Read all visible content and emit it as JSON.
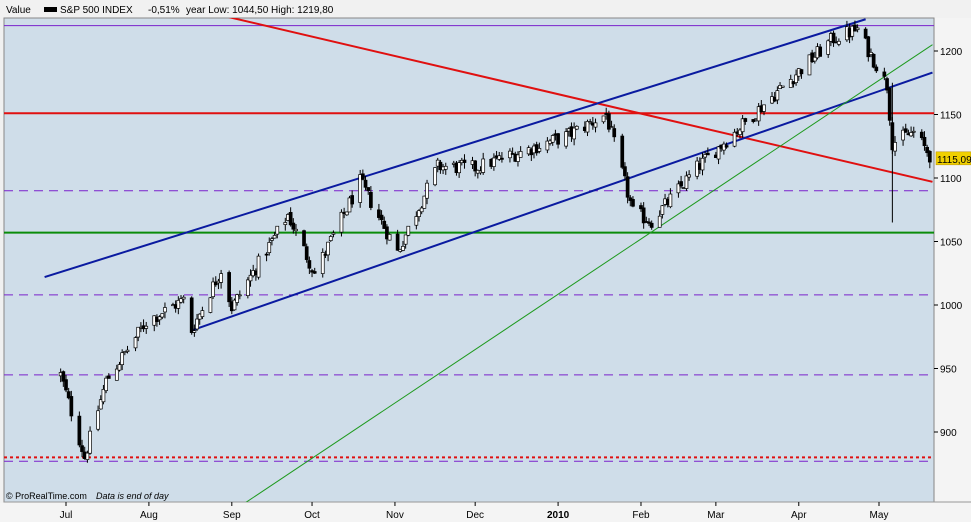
{
  "header": {
    "value_label": "Value",
    "instrument": "S&P 500 INDEX",
    "change": "-0,51%",
    "stats": "year Low: 1044,50 High: 1219,80"
  },
  "credit": {
    "source": "© ProRealTime.com",
    "note": "Data is end of day"
  },
  "colors": {
    "plot_background": "#cfdde9",
    "candle": "#000000",
    "channel": "#0a1aa0",
    "downtrend": "#e01010",
    "support_green": "#0a8c0a",
    "long_trendline": "#1f9a1f",
    "purple_dashed": "#7a22cc",
    "red_dotted": "#e01010",
    "price_tag": "#f0d000"
  },
  "chart_data": {
    "type": "candlestick",
    "instrument": "S&P 500 INDEX",
    "period": "daily",
    "x_tick_labels": [
      "Jul",
      "Aug",
      "Sep",
      "Oct",
      "Nov",
      "Dec",
      "2010",
      "Feb",
      "Mar",
      "Apr",
      "May"
    ],
    "y_tick_labels": [
      "900",
      "950",
      "1000",
      "1050",
      "1100",
      "1150",
      "1200"
    ],
    "ylim": [
      846,
      1230
    ],
    "last_price": "1115,09",
    "year_low": 1044.5,
    "year_high": 1219.8,
    "close_path": [
      {
        "date": "2009-06-29",
        "close": 945
      },
      {
        "date": "2009-07-08",
        "close": 880
      },
      {
        "date": "2009-07-16",
        "close": 940
      },
      {
        "date": "2009-07-31",
        "close": 987
      },
      {
        "date": "2009-08-14",
        "close": 1004
      },
      {
        "date": "2009-08-17",
        "close": 980
      },
      {
        "date": "2009-08-28",
        "close": 1028
      },
      {
        "date": "2009-09-01",
        "close": 998
      },
      {
        "date": "2009-09-22",
        "close": 1071
      },
      {
        "date": "2009-10-02",
        "close": 1025
      },
      {
        "date": "2009-10-19",
        "close": 1097
      },
      {
        "date": "2009-11-02",
        "close": 1042
      },
      {
        "date": "2009-11-17",
        "close": 1109
      },
      {
        "date": "2009-12-01",
        "close": 1108
      },
      {
        "date": "2010-01-04",
        "close": 1133
      },
      {
        "date": "2010-01-19",
        "close": 1150
      },
      {
        "date": "2010-01-29",
        "close": 1073
      },
      {
        "date": "2010-02-05",
        "close": 1066
      },
      {
        "date": "2010-02-22",
        "close": 1108
      },
      {
        "date": "2010-03-15",
        "close": 1150
      },
      {
        "date": "2010-04-14",
        "close": 1210
      },
      {
        "date": "2010-04-23",
        "close": 1217
      },
      {
        "date": "2010-05-04",
        "close": 1173
      },
      {
        "date": "2010-05-06",
        "close": 1128
      },
      {
        "date": "2010-05-14",
        "close": 1136
      },
      {
        "date": "2010-05-21",
        "close": 1115
      }
    ],
    "horizontal_lines": [
      {
        "value": 1220,
        "color": "purple_dashed",
        "style": "solid"
      },
      {
        "value": 1151,
        "color": "downtrend",
        "style": "solid"
      },
      {
        "value": 1090,
        "color": "purple_dashed",
        "style": "dashed"
      },
      {
        "value": 1057,
        "color": "support_green",
        "style": "solid"
      },
      {
        "value": 1008,
        "color": "purple_dashed",
        "style": "dashed"
      },
      {
        "value": 945,
        "color": "purple_dashed",
        "style": "dashed"
      },
      {
        "value": 880,
        "color": "red_dotted",
        "style": "dotted"
      },
      {
        "value": 877,
        "color": "purple_dashed",
        "style": "dashed"
      }
    ],
    "trendlines": [
      {
        "color": "downtrend",
        "from": {
          "date": "2009-08-14",
          "value": 1235
        },
        "to": {
          "date": "2010-05-21",
          "value": 1097
        }
      },
      {
        "color": "channel",
        "from": {
          "date": "2009-06-23",
          "value": 1022
        },
        "to": {
          "date": "2010-04-26",
          "value": 1225
        }
      },
      {
        "color": "channel",
        "from": {
          "date": "2009-08-17",
          "value": 980
        },
        "to": {
          "date": "2010-05-21",
          "value": 1183
        }
      },
      {
        "color": "long_trendline",
        "from": {
          "date": "2009-09-03",
          "value": 840
        },
        "to": {
          "date": "2010-05-21",
          "value": 1205
        }
      }
    ]
  }
}
